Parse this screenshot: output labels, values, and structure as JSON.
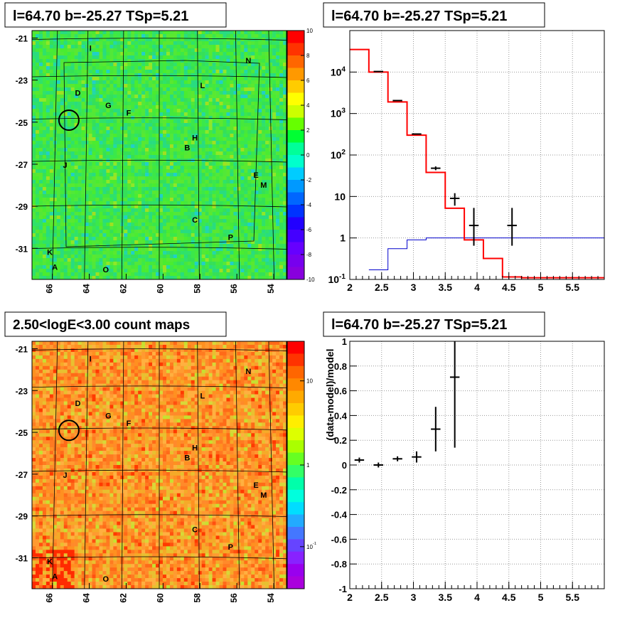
{
  "colors": {
    "model": "#ff0000",
    "data": "#000000",
    "background": "#0000cc",
    "frame": "#000000"
  },
  "panels": {
    "tl": {
      "title": "l=64.70 b=-25.27 TSp=5.21"
    },
    "tr": {
      "title": "l=64.70 b=-25.27 TSp=5.21"
    },
    "bl": {
      "title": "2.50<logE<3.00 count maps"
    },
    "br": {
      "title": "l=64.70 b=-25.27 TSp=5.21"
    }
  },
  "maps": {
    "x_ticks": [
      "66",
      "64",
      "62",
      "60",
      "58",
      "56",
      "54"
    ],
    "y_ticks": [
      "-21",
      "-23",
      "-25",
      "-27",
      "-29",
      "-31"
    ],
    "sources": [
      "I",
      "N",
      "L",
      "D",
      "G",
      "F",
      "H",
      "B",
      "J",
      "E",
      "M",
      "C",
      "P",
      "K",
      "A",
      "O"
    ],
    "residual_colorbar": [
      "10",
      "8",
      "6",
      "4",
      "2",
      "0",
      "-2",
      "-4",
      "-6",
      "-8",
      "-10"
    ],
    "count_colorbar": [
      "10",
      "1",
      "10^-1"
    ]
  },
  "chart_data": [
    {
      "type": "line",
      "panel": "spectrum",
      "title": "l=64.70 b=-25.27 TSp=5.21",
      "xlabel": "",
      "ylabel": "",
      "xlim": [
        2,
        6
      ],
      "ylim": [
        0.1,
        100000
      ],
      "yscale": "log",
      "x_ticks": [
        "2",
        "2.5",
        "3",
        "3.5",
        "4",
        "4.5",
        "5",
        "5.5"
      ],
      "y_ticks": [
        "10^-1",
        "1",
        "10",
        "10^2",
        "10^3",
        "10^4"
      ],
      "grid": true,
      "series": [
        {
          "style": "step",
          "role": "total model",
          "bins": [
            [
              2.0,
              2.3,
              35000
            ],
            [
              2.3,
              2.6,
              10000
            ],
            [
              2.6,
              2.9,
              1900
            ],
            [
              2.9,
              3.2,
              300
            ],
            [
              3.2,
              3.5,
              38
            ],
            [
              3.5,
              3.8,
              5.2
            ],
            [
              3.8,
              4.1,
              0.9
            ],
            [
              4.1,
              4.4,
              0.32
            ],
            [
              4.4,
              4.7,
              0.115
            ],
            [
              4.7,
              6.0,
              0.11
            ]
          ]
        },
        {
          "style": "step",
          "role": "background",
          "bins": [
            [
              2.3,
              2.6,
              0.17
            ],
            [
              2.6,
              2.9,
              0.55
            ],
            [
              2.9,
              3.2,
              0.9
            ],
            [
              3.2,
              6.0,
              1.0
            ]
          ]
        },
        {
          "style": "errorbar",
          "role": "data",
          "points": [
            [
              2.45,
              0.15,
              10300,
              0,
              0
            ],
            [
              2.75,
              0.15,
              2050,
              0,
              0
            ],
            [
              3.05,
              0.15,
              320,
              0,
              0
            ],
            [
              3.35,
              0.15,
              48,
              5,
              5
            ],
            [
              3.65,
              0.15,
              9,
              3,
              3
            ],
            [
              3.95,
              0.15,
              2,
              1.35,
              3.3
            ],
            [
              4.55,
              0.15,
              2,
              1.35,
              3.3
            ]
          ]
        }
      ]
    },
    {
      "type": "scatter",
      "panel": "residuals",
      "title": "l=64.70 b=-25.27 TSp=5.21",
      "ylabel": "(data-model)/model",
      "xlim": [
        2,
        6
      ],
      "ylim": [
        -1,
        1
      ],
      "x_ticks": [
        "2",
        "2.5",
        "3",
        "3.5",
        "4",
        "4.5",
        "5",
        "5.5"
      ],
      "y_ticks": [
        "1",
        "0.8",
        "0.6",
        "0.4",
        "0.2",
        "0",
        "-0.2",
        "-0.4",
        "-0.6",
        "-0.8",
        "-1"
      ],
      "grid": true,
      "points": [
        [
          2.15,
          0.15,
          0.04,
          0.02
        ],
        [
          2.45,
          0.15,
          0.0,
          0.02
        ],
        [
          2.75,
          0.15,
          0.05,
          0.02
        ],
        [
          3.05,
          0.15,
          0.065,
          0.045
        ],
        [
          3.35,
          0.15,
          0.29,
          0.18
        ],
        [
          3.65,
          0.15,
          0.71,
          0.57
        ]
      ]
    }
  ]
}
